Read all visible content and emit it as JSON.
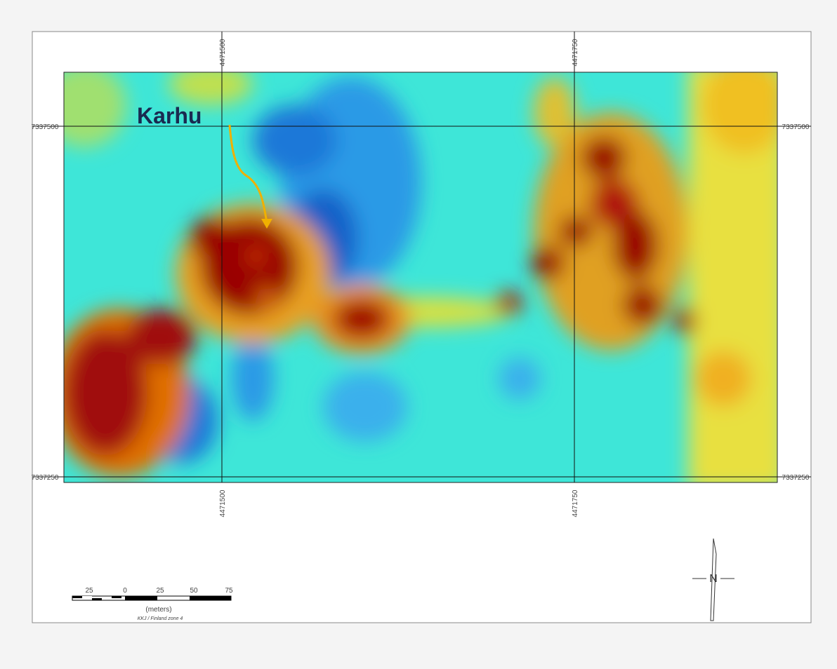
{
  "map": {
    "grid": {
      "easting": [
        "4471500",
        "4471750"
      ],
      "northing": [
        "7337500",
        "7337250"
      ]
    },
    "annotation": "Karhu",
    "scale_bar": {
      "ticks": [
        "25",
        "0",
        "25",
        "50",
        "75"
      ],
      "unit": "(meters)",
      "projection": "KKJ / Finland zone 4"
    },
    "north_label": "N"
  }
}
